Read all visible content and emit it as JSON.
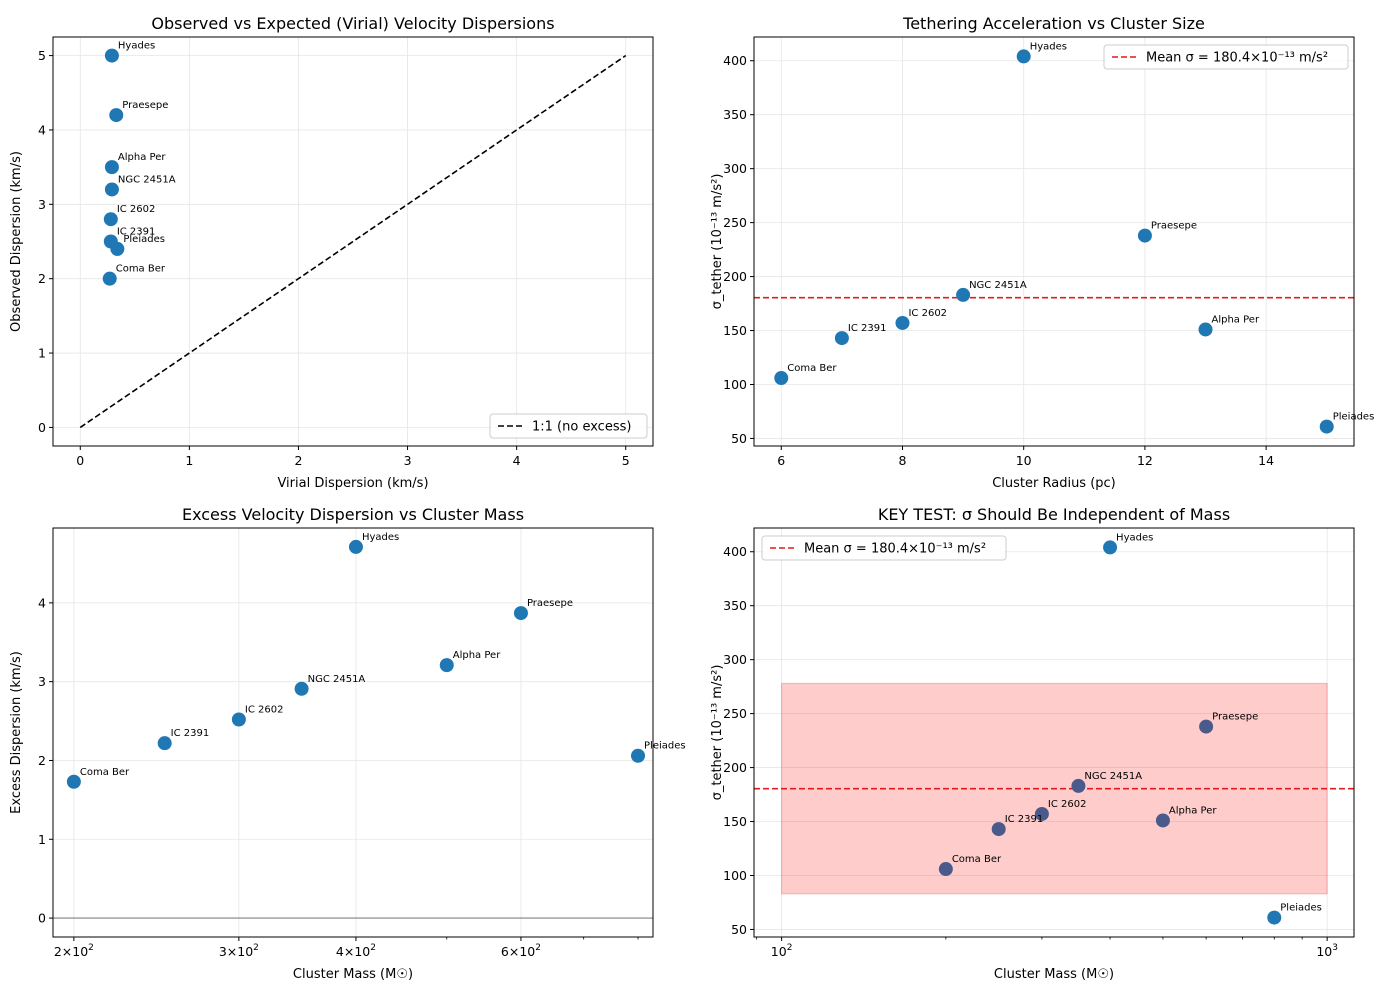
{
  "chart_data": [
    {
      "type": "scatter",
      "title": "Observed vs Expected (Virial) Velocity Dispersions",
      "xlabel": "Virial Dispersion (km/s)",
      "ylabel": "Observed Dispersion (km/s)",
      "xlim": [
        -0.25,
        5.25
      ],
      "ylim": [
        -0.25,
        5.25
      ],
      "xticks": [
        0,
        1,
        2,
        3,
        4,
        5
      ],
      "yticks": [
        0,
        1,
        2,
        3,
        4,
        5
      ],
      "xtick_labels": [
        "0",
        "1",
        "2",
        "3",
        "4",
        "5"
      ],
      "ytick_labels": [
        "0",
        "1",
        "2",
        "3",
        "4",
        "5"
      ],
      "xscale": "linear",
      "grid": true,
      "legend": {
        "placement": "lower-right",
        "entries": [
          "1:1 (no excess)"
        ]
      },
      "reference_line": {
        "kind": "diagonal",
        "from": [
          0,
          0
        ],
        "to": [
          5,
          5
        ],
        "color": "#000000",
        "style": "dashed"
      },
      "points": [
        {
          "label": "Hyades",
          "x": 0.29,
          "y": 5.0
        },
        {
          "label": "Praesepe",
          "x": 0.33,
          "y": 4.2
        },
        {
          "label": "Alpha Per",
          "x": 0.29,
          "y": 3.5
        },
        {
          "label": "NGC 2451A",
          "x": 0.29,
          "y": 3.2
        },
        {
          "label": "IC 2602",
          "x": 0.28,
          "y": 2.8
        },
        {
          "label": "IC 2391",
          "x": 0.28,
          "y": 2.5
        },
        {
          "label": "Pleiades",
          "x": 0.34,
          "y": 2.4
        },
        {
          "label": "Coma Ber",
          "x": 0.27,
          "y": 2.0
        }
      ]
    },
    {
      "type": "scatter",
      "title": "Tethering Acceleration vs Cluster Size",
      "xlabel": "Cluster Radius (pc)",
      "ylabel": "σ_tether (10⁻¹³ m/s²)",
      "xlim": [
        5.55,
        15.45
      ],
      "ylim": [
        43,
        422
      ],
      "xticks": [
        6,
        8,
        10,
        12,
        14
      ],
      "yticks": [
        50,
        100,
        150,
        200,
        250,
        300,
        350,
        400
      ],
      "xtick_labels": [
        "6",
        "8",
        "10",
        "12",
        "14"
      ],
      "ytick_labels": [
        "50",
        "100",
        "150",
        "200",
        "250",
        "300",
        "350",
        "400"
      ],
      "xscale": "linear",
      "grid": true,
      "legend": {
        "placement": "top-right",
        "entries": [
          "Mean σ = 180.4×10⁻¹³ m/s²"
        ]
      },
      "reference_line": {
        "kind": "horizontal",
        "y": 180.4,
        "color": "#e41a1c",
        "style": "dashed"
      },
      "points": [
        {
          "label": "Hyades",
          "x": 10,
          "y": 404
        },
        {
          "label": "Praesepe",
          "x": 12,
          "y": 238
        },
        {
          "label": "NGC 2451A",
          "x": 9,
          "y": 183
        },
        {
          "label": "IC 2602",
          "x": 8,
          "y": 157
        },
        {
          "label": "Alpha Per",
          "x": 13,
          "y": 151
        },
        {
          "label": "IC 2391",
          "x": 7,
          "y": 143
        },
        {
          "label": "Coma Ber",
          "x": 6,
          "y": 106
        },
        {
          "label": "Pleiades",
          "x": 15,
          "y": 61
        }
      ]
    },
    {
      "type": "scatter",
      "title": "Excess Velocity Dispersion vs Cluster Mass",
      "xlabel": "Cluster Mass (M☉)",
      "ylabel": "Excess Dispersion (km/s)",
      "xlim": [
        190,
        830
      ],
      "ylim": [
        -0.24,
        4.95
      ],
      "xticks": [
        200,
        300,
        400,
        600
      ],
      "yticks": [
        0,
        1,
        2,
        3,
        4
      ],
      "xtick_labels": [
        "2×10",
        "3×10",
        "4×10",
        "6×10"
      ],
      "xtick_exponent": "2",
      "ytick_labels": [
        "0",
        "1",
        "2",
        "3",
        "4"
      ],
      "xscale": "log",
      "grid": true,
      "reference_line": {
        "kind": "horizontal",
        "y": 0,
        "color": "#808080",
        "style": "solid"
      },
      "points": [
        {
          "label": "Hyades",
          "x": 400,
          "y": 4.71
        },
        {
          "label": "Praesepe",
          "x": 600,
          "y": 3.87
        },
        {
          "label": "Alpha Per",
          "x": 500,
          "y": 3.21
        },
        {
          "label": "NGC 2451A",
          "x": 350,
          "y": 2.91
        },
        {
          "label": "IC 2602",
          "x": 300,
          "y": 2.52
        },
        {
          "label": "IC 2391",
          "x": 250,
          "y": 2.22
        },
        {
          "label": "Pleiades",
          "x": 800,
          "y": 2.06
        },
        {
          "label": "Coma Ber",
          "x": 200,
          "y": 1.73
        }
      ]
    },
    {
      "type": "scatter",
      "title": "KEY TEST: σ Should Be Independent of Mass",
      "xlabel": "Cluster Mass (M☉)",
      "ylabel": "σ_tether (10⁻¹³ m/s²)",
      "xlim": [
        89,
        1120
      ],
      "ylim": [
        43,
        422
      ],
      "xticks": [
        100,
        1000
      ],
      "yticks": [
        50,
        100,
        150,
        200,
        250,
        300,
        350,
        400
      ],
      "xtick_labels": [
        "10",
        "10"
      ],
      "xtick_exponents": [
        "2",
        "3"
      ],
      "ytick_labels": [
        "50",
        "100",
        "150",
        "200",
        "250",
        "300",
        "350",
        "400"
      ],
      "xscale": "log",
      "grid": true,
      "legend": {
        "placement": "top-left",
        "entries": [
          "Mean σ = 180.4×10⁻¹³ m/s²"
        ]
      },
      "reference_line": {
        "kind": "horizontal",
        "y": 180.4,
        "color": "#e41a1c",
        "style": "dashed"
      },
      "band": {
        "x": [
          100,
          1000
        ],
        "y": [
          83,
          278
        ],
        "color": "#ff0000"
      },
      "points": [
        {
          "label": "Hyades",
          "x": 400,
          "y": 404
        },
        {
          "label": "Praesepe",
          "x": 600,
          "y": 238
        },
        {
          "label": "NGC 2451A",
          "x": 350,
          "y": 183
        },
        {
          "label": "IC 2602",
          "x": 300,
          "y": 157
        },
        {
          "label": "Alpha Per",
          "x": 500,
          "y": 151
        },
        {
          "label": "IC 2391",
          "x": 250,
          "y": 143
        },
        {
          "label": "Coma Ber",
          "x": 200,
          "y": 106
        },
        {
          "label": "Pleiades",
          "x": 800,
          "y": 61
        }
      ]
    }
  ],
  "colors": {
    "point": "#1f77b4",
    "grid": "#e6e6e6",
    "mean_line": "#e41a1c"
  }
}
